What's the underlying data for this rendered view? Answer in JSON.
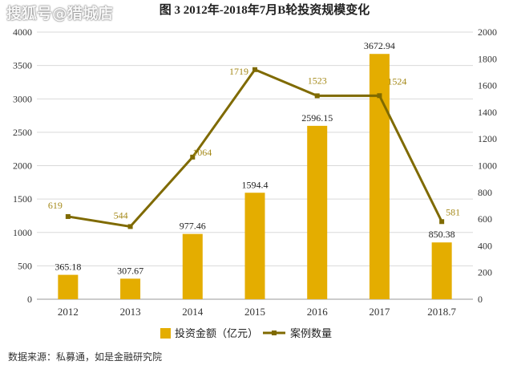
{
  "watermark": "搜狐号@猎城店",
  "source": "数据来源：私募通，如是金融研究院",
  "chart_data": {
    "type": "bar",
    "title": "图 3    2012年-2018年7月B轮投资规模变化",
    "categories": [
      "2012",
      "2013",
      "2014",
      "2015",
      "2016",
      "2017",
      "2018.7"
    ],
    "ylim_left": [
      0,
      4000
    ],
    "ylim_right": [
      0,
      2000
    ],
    "yticks_left": [
      "0",
      "500",
      "1000",
      "1500",
      "2000",
      "2500",
      "3000",
      "3500",
      "4000"
    ],
    "yticks_right": [
      "0",
      "200",
      "400",
      "600",
      "800",
      "1000",
      "1200",
      "1400",
      "1600",
      "1800",
      "2000"
    ],
    "grid": true,
    "legend_position": "bottom",
    "series": [
      {
        "name": "投资金额（亿元）",
        "type": "bar",
        "axis": "left",
        "values": [
          365.18,
          307.67,
          977.46,
          1594.4,
          2596.15,
          3672.94,
          850.38
        ],
        "labels": [
          "365.18",
          "307.67",
          "977.46",
          "1594.4",
          "2596.15",
          "3672.94",
          "850.38"
        ]
      },
      {
        "name": "案例数量",
        "type": "line",
        "axis": "right",
        "values": [
          619,
          544,
          1064,
          1719,
          1523,
          1524,
          581
        ],
        "labels": [
          "619",
          "544",
          "1064",
          "1719",
          "1523",
          "1524",
          "581"
        ]
      }
    ],
    "colors": {
      "bar": "#e4ad00",
      "line": "#7f6a00",
      "grid": "#d9d9d9",
      "line_label": "#a58a1a",
      "bar_label": "#222222"
    }
  }
}
